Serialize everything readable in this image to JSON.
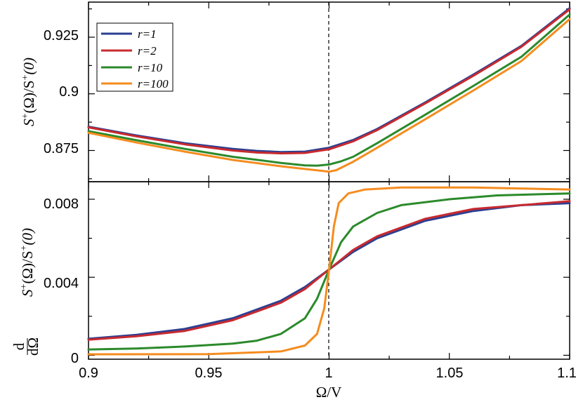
{
  "chart_data": [
    {
      "type": "line",
      "panel": "top",
      "ylabel": {
        "main": "S",
        "sup": "+",
        "rest": "(Ω)/S",
        "sup2": "+",
        "tail": "(0)"
      },
      "xlim": [
        0.9,
        1.1
      ],
      "ylim": [
        0.8612,
        0.9405
      ],
      "yticks": [
        0.875,
        0.9,
        0.925
      ],
      "ytick_labels": [
        "0.875",
        "0.9",
        "0.925"
      ],
      "vline_x": 1.0,
      "legend": {
        "position": "top-left",
        "entries": [
          "r=1",
          "r=2",
          "r=10",
          "r=100"
        ]
      },
      "series": [
        {
          "name": "r=1",
          "color": "#2b3f92",
          "x": [
            0.9,
            0.92,
            0.94,
            0.96,
            0.97,
            0.98,
            0.99,
            1.0,
            1.01,
            1.02,
            1.04,
            1.06,
            1.08,
            1.1
          ],
          "y": [
            0.8855,
            0.8816,
            0.8782,
            0.8757,
            0.8748,
            0.8743,
            0.8745,
            0.8762,
            0.8796,
            0.8845,
            0.8962,
            0.9085,
            0.9212,
            0.9378
          ]
        },
        {
          "name": "r=2",
          "color": "#c82a2f",
          "x": [
            0.9,
            0.92,
            0.94,
            0.96,
            0.97,
            0.98,
            0.99,
            1.0,
            1.01,
            1.02,
            1.04,
            1.06,
            1.08,
            1.1
          ],
          "y": [
            0.8852,
            0.8812,
            0.8777,
            0.875,
            0.8741,
            0.8737,
            0.8739,
            0.8755,
            0.879,
            0.884,
            0.8958,
            0.908,
            0.9208,
            0.9373
          ]
        },
        {
          "name": "r=10",
          "color": "#2b8a2b",
          "x": [
            0.9,
            0.92,
            0.94,
            0.96,
            0.98,
            0.99,
            0.995,
            1.0,
            1.005,
            1.01,
            1.02,
            1.04,
            1.06,
            1.08,
            1.1
          ],
          "y": [
            0.8835,
            0.8795,
            0.8757,
            0.8722,
            0.8695,
            0.8684,
            0.8683,
            0.8688,
            0.8702,
            0.8722,
            0.8782,
            0.8908,
            0.9035,
            0.9164,
            0.935
          ]
        },
        {
          "name": "r=100",
          "color": "#f58c1f",
          "x": [
            0.9,
            0.92,
            0.94,
            0.96,
            0.98,
            0.99,
            0.997,
            1.0,
            1.003,
            1.01,
            1.02,
            1.04,
            1.06,
            1.08,
            1.1
          ],
          "y": [
            0.8828,
            0.8785,
            0.8745,
            0.8708,
            0.868,
            0.8668,
            0.866,
            0.8656,
            0.8663,
            0.87,
            0.8762,
            0.8888,
            0.9015,
            0.9145,
            0.933
          ]
        }
      ]
    },
    {
      "type": "line",
      "panel": "bottom",
      "xlabel": "Ω/V",
      "ylabel": {
        "frac_top": "d",
        "frac_bottom": "dΩ",
        "main": "S",
        "sup": "+",
        "rest": "(Ω)/S",
        "sup2": "+",
        "tail": "(0)"
      },
      "xlim": [
        0.9,
        1.1
      ],
      "ylim": [
        -0.0002,
        0.0089
      ],
      "xticks": [
        0.9,
        0.95,
        1.0,
        1.05,
        1.1
      ],
      "xtick_labels": [
        "0.9",
        "0.95",
        "1",
        "1.05",
        "1.1"
      ],
      "yticks": [
        0,
        0.004,
        0.008
      ],
      "ytick_labels": [
        "0",
        "0.004",
        "0.008"
      ],
      "vline_x": 1.0,
      "series": [
        {
          "name": "r=1",
          "color": "#2b3f92",
          "x": [
            0.9,
            0.92,
            0.94,
            0.96,
            0.98,
            0.99,
            1.0,
            1.01,
            1.02,
            1.04,
            1.06,
            1.08,
            1.1
          ],
          "y": [
            0.00085,
            0.00105,
            0.00135,
            0.0019,
            0.0028,
            0.0035,
            0.0044,
            0.0053,
            0.006,
            0.0069,
            0.0074,
            0.0077,
            0.0078
          ]
        },
        {
          "name": "r=2",
          "color": "#c82a2f",
          "x": [
            0.9,
            0.92,
            0.94,
            0.96,
            0.98,
            0.99,
            1.0,
            1.01,
            1.02,
            1.04,
            1.06,
            1.08,
            1.1
          ],
          "y": [
            0.0008,
            0.00098,
            0.00125,
            0.0018,
            0.0027,
            0.0034,
            0.0044,
            0.0054,
            0.0061,
            0.007,
            0.0075,
            0.0077,
            0.0079
          ]
        },
        {
          "name": "r=10",
          "color": "#2b8a2b",
          "x": [
            0.9,
            0.92,
            0.94,
            0.96,
            0.97,
            0.98,
            0.99,
            0.995,
            1.0,
            1.005,
            1.01,
            1.02,
            1.03,
            1.05,
            1.07,
            1.1
          ],
          "y": [
            0.0003,
            0.00035,
            0.00045,
            0.0006,
            0.00075,
            0.0011,
            0.0019,
            0.0029,
            0.0044,
            0.0058,
            0.0066,
            0.0073,
            0.0077,
            0.008,
            0.0082,
            0.0083
          ]
        },
        {
          "name": "r=100",
          "color": "#f58c1f",
          "x": [
            0.9,
            0.95,
            0.98,
            0.99,
            0.995,
            0.998,
            1.0,
            1.002,
            1.004,
            1.008,
            1.015,
            1.03,
            1.06,
            1.1
          ],
          "y": [
            5e-05,
            6e-05,
            0.0002,
            0.0005,
            0.0011,
            0.0024,
            0.0044,
            0.0066,
            0.0078,
            0.0083,
            0.0085,
            0.0086,
            0.0086,
            0.0085
          ]
        }
      ]
    }
  ]
}
